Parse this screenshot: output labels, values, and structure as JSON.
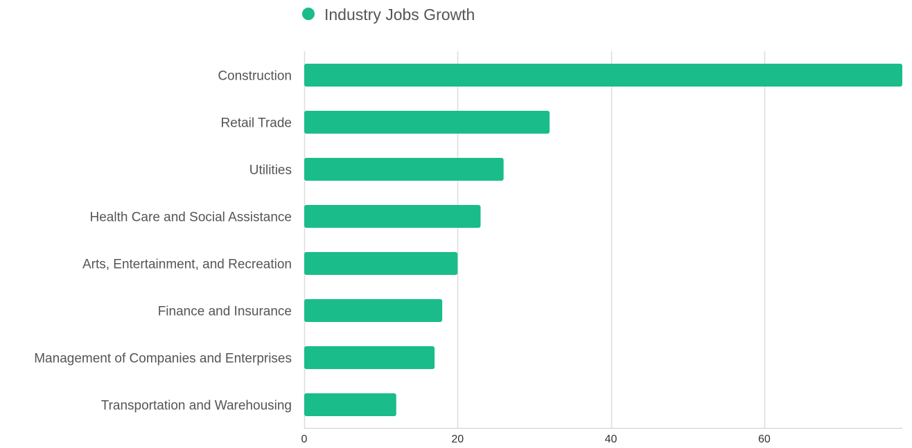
{
  "chart_data": {
    "type": "bar",
    "orientation": "horizontal",
    "title": "",
    "xlabel": "",
    "ylabel": "",
    "categories": [
      "Construction",
      "Retail Trade",
      "Utilities",
      "Health Care and Social Assistance",
      "Arts, Entertainment, and Recreation",
      "Finance and Insurance",
      "Management of Companies and Enterprises",
      "Transportation and Warehousing"
    ],
    "series": [
      {
        "name": "Industry Jobs Growth",
        "values": [
          78,
          32,
          26,
          23,
          20,
          18,
          17,
          12
        ],
        "color": "#1abc8a"
      }
    ],
    "xlim": [
      0,
      78
    ],
    "x_ticks": [
      0,
      20,
      40,
      60
    ],
    "grid": true,
    "legend_position": "top"
  },
  "colors": {
    "bar": "#1abc8a",
    "grid": "#dddddd",
    "axis": "#cccccc"
  }
}
